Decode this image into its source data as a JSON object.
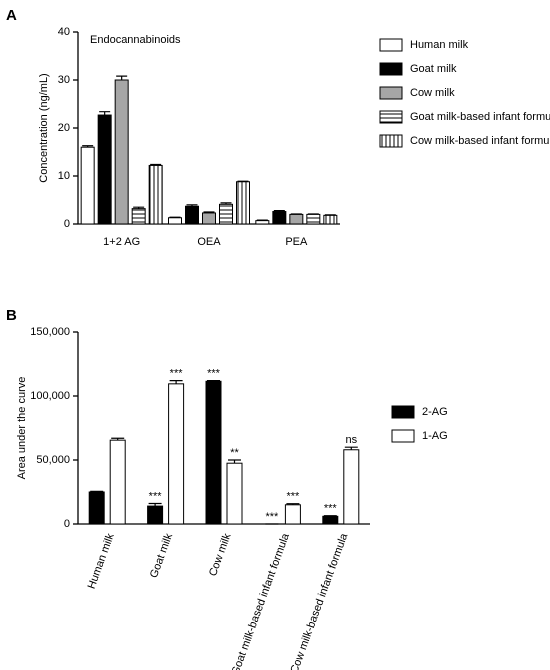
{
  "chart_data": [
    {
      "type": "bar",
      "panel": "A",
      "annotation": "Endocannabinoids",
      "y_label": "Concentration (ng/mL)",
      "categories": [
        "1+2 AG",
        "OEA",
        "PEA"
      ],
      "ylim": [
        0,
        40
      ],
      "yticks": [
        0,
        10,
        20,
        30,
        40
      ],
      "series": [
        {
          "name": "Human milk",
          "color": "#ffffff",
          "values": [
            16,
            1.3,
            0.7
          ],
          "errors": [
            0.3,
            0.1,
            0.1
          ]
        },
        {
          "name": "Goat milk",
          "color": "#000000",
          "values": [
            22.7,
            3.7,
            2.6
          ],
          "errors": [
            0.7,
            0.3,
            0.2
          ]
        },
        {
          "name": "Cow milk",
          "color": "#a6a6a6",
          "values": [
            30,
            2.3,
            2.0
          ],
          "errors": [
            0.8,
            0.2,
            0.1
          ]
        },
        {
          "name": "Goat milk-based infant formula",
          "color": "#ffffff",
          "hatch": "horizontal",
          "values": [
            3.2,
            4.1,
            2.0
          ],
          "errors": [
            0.3,
            0.3,
            0.1
          ]
        },
        {
          "name": "Cow milk-based infant formula",
          "color": "#ffffff",
          "hatch": "vertical",
          "values": [
            12.2,
            8.8,
            1.8
          ],
          "errors": [
            0.2,
            0.1,
            0.1
          ]
        }
      ]
    },
    {
      "type": "bar",
      "panel": "B",
      "y_label": "Area under the curve",
      "categories": [
        "Human milk",
        "Goat milk",
        "Cow milk",
        "Goat milk-based infant formula",
        "Cow milk-based infant formula"
      ],
      "ylim": [
        0,
        150000
      ],
      "yticks": [
        0,
        {
          "value": 50000,
          "label": "50,000"
        },
        {
          "value": 100000,
          "label": "100,000"
        },
        {
          "value": 150000,
          "label": "150,000"
        }
      ],
      "series": [
        {
          "name": "2-AG",
          "color": "#000000",
          "values": [
            25000,
            14000,
            111500,
            0,
            6000
          ],
          "errors": [
            500,
            2000,
            500,
            0,
            500
          ],
          "significance": [
            null,
            "***",
            "***",
            "***",
            "***"
          ]
        },
        {
          "name": "1-AG",
          "color": "#ffffff",
          "values": [
            65500,
            109500,
            47500,
            15000,
            58000
          ],
          "errors": [
            1500,
            2500,
            2500,
            800,
            2000
          ],
          "significance": [
            null,
            "***",
            "**",
            "***",
            "ns"
          ]
        }
      ]
    }
  ]
}
